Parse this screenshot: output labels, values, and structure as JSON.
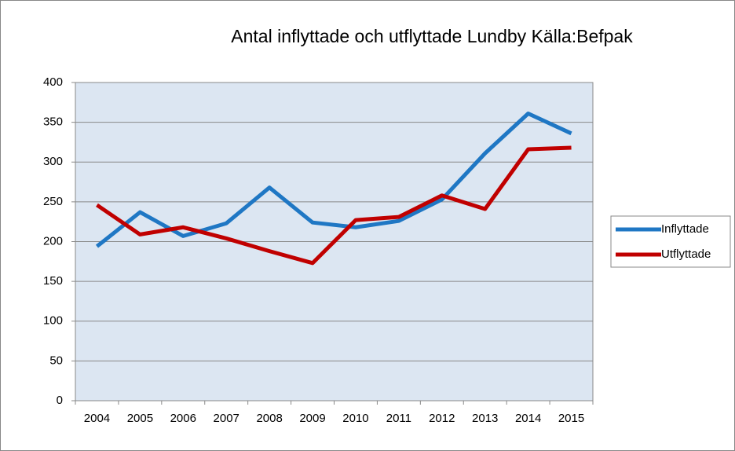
{
  "chart_data": {
    "type": "line",
    "title": "Antal inflyttade och utflyttade Lundby Källa:Befpak",
    "categories": [
      "2004",
      "2005",
      "2006",
      "2007",
      "2008",
      "2009",
      "2010",
      "2011",
      "2012",
      "2013",
      "2014",
      "2015"
    ],
    "series": [
      {
        "name": "Inflyttade",
        "color": "#1f77c4",
        "values": [
          194,
          237,
          207,
          223,
          268,
          224,
          218,
          226,
          253,
          311,
          361,
          336
        ]
      },
      {
        "name": "Utflyttade",
        "color": "#c00000",
        "values": [
          246,
          209,
          218,
          204,
          188,
          173,
          227,
          231,
          258,
          241,
          316,
          318
        ]
      }
    ],
    "ylim": [
      0,
      400
    ],
    "yticks": [
      0,
      50,
      100,
      150,
      200,
      250,
      300,
      350,
      400
    ],
    "grid": true,
    "legend": "right"
  }
}
